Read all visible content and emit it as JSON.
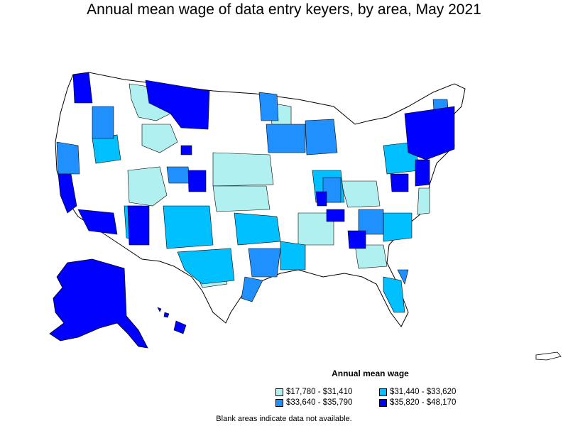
{
  "title": "Annual mean wage of data entry keyers, by area, May 2021",
  "legend": {
    "title": "Annual mean wage",
    "items": [
      {
        "label": "$17,780 - $31,410",
        "color": "#b0f0f0"
      },
      {
        "label": "$31,440 - $33,620",
        "color": "#00c0ff"
      },
      {
        "label": "$33,640 - $35,790",
        "color": "#2090ff"
      },
      {
        "label": "$35,820 - $48,170",
        "color": "#0000ff"
      }
    ]
  },
  "footnote": "Blank areas indicate data not available.",
  "colors": {
    "tier1": "#b0f0f0",
    "tier2": "#00c0ff",
    "tier3": "#2090ff",
    "tier4": "#0000ff",
    "blank": "#ffffff",
    "border": "#000000"
  }
}
